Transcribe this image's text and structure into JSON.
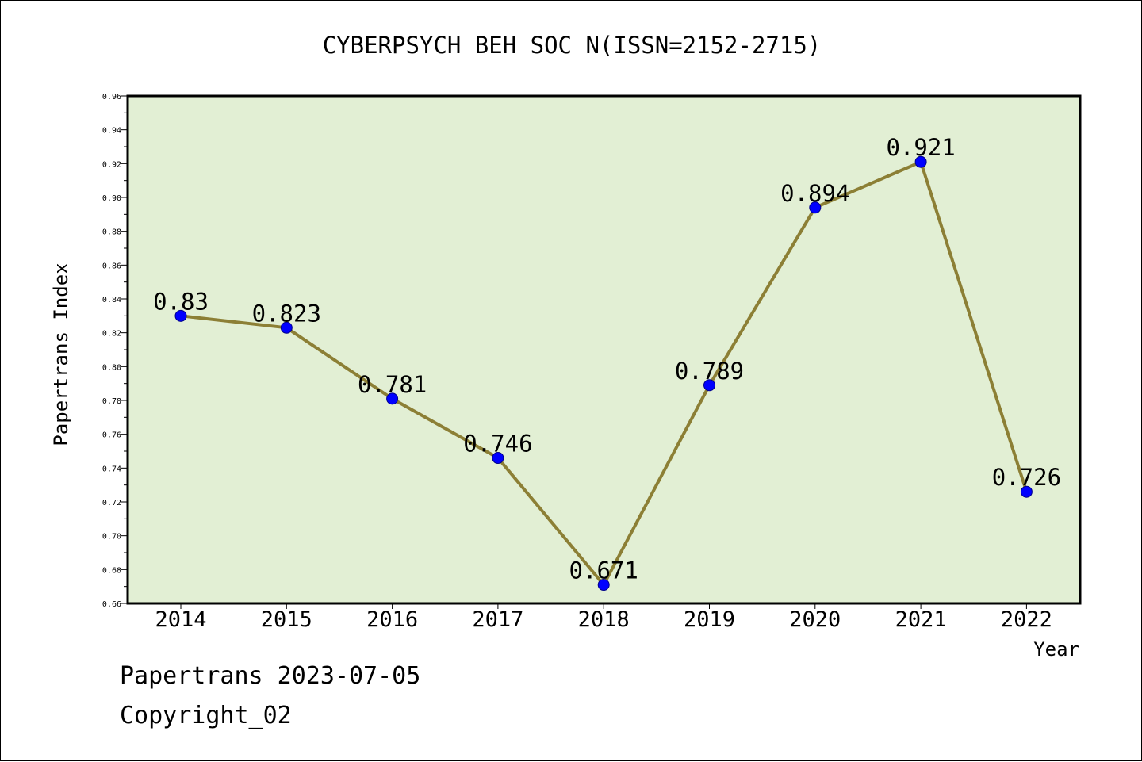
{
  "chart_data": {
    "type": "line",
    "title": "CYBERPSYCH BEH SOC N(ISSN=2152-2715)",
    "xlabel": "Year",
    "ylabel": "Papertrans Index",
    "x": [
      "2014",
      "2015",
      "2016",
      "2017",
      "2018",
      "2019",
      "2020",
      "2021",
      "2022"
    ],
    "series": [
      {
        "values": [
          0.83,
          0.823,
          0.781,
          0.746,
          0.671,
          0.789,
          0.894,
          0.921,
          0.726
        ],
        "data_labels": [
          "0.83",
          "0.823",
          "0.781",
          "0.746",
          "0.671",
          "0.789",
          "0.894",
          "0.921",
          "0.726"
        ]
      }
    ],
    "ylim": [
      0.66,
      0.96
    ],
    "yticks": [
      "0.66",
      "0.68",
      "0.70",
      "0.72",
      "0.74",
      "0.76",
      "0.78",
      "0.80",
      "0.82",
      "0.84",
      "0.86",
      "0.88",
      "0.90",
      "0.92",
      "0.94",
      "0.96"
    ],
    "grid": false,
    "legend": "none",
    "colors": {
      "plot_background": "#e2efd4",
      "line": "#8c7f35",
      "marker": "#0000ff"
    }
  },
  "footer": {
    "line1": "Papertrans 2023-07-05",
    "line2": "Copyright_02"
  }
}
